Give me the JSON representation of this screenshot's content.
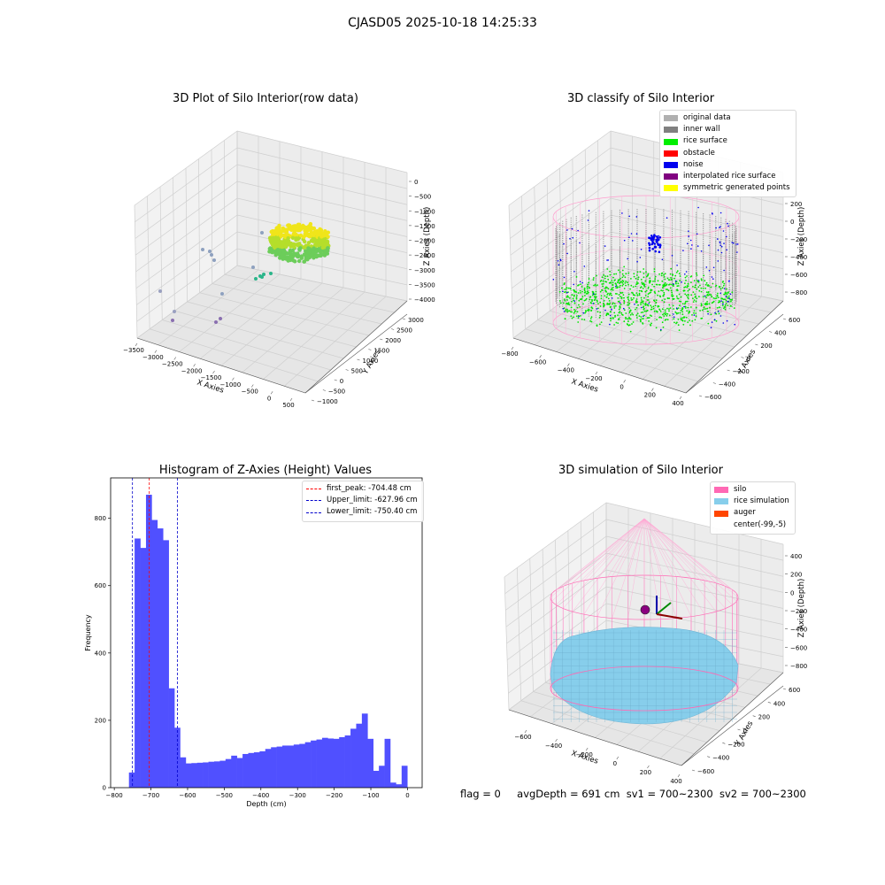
{
  "figure": {
    "suptitle": "CJASD05 2025-10-18 14:25:33",
    "footer": {
      "flag": "flag = 0",
      "avgDepth": "avgDepth = 691 cm",
      "sv1": "sv1 = 700~2300",
      "sv2": "sv2 = 700~2300"
    }
  },
  "chart_data": [
    {
      "type": "scatter",
      "title": "3D Plot of Silo Interior(row data)",
      "xlabel": "X Axies",
      "ylabel": "Y Axies",
      "zlabel": "Z Axies (Depth)",
      "x_ticks": [
        "−3500",
        "−3000",
        "−2500",
        "−2000",
        "−1500",
        "−1000",
        "−500",
        "0",
        "500"
      ],
      "y_ticks": [
        "−1000",
        "−500",
        "0",
        "500",
        "1000",
        "1500",
        "2000",
        "2500",
        "3000"
      ],
      "z_ticks": [
        "0",
        "−500",
        "−1000",
        "−1500",
        "−2000",
        "−2500",
        "−3000",
        "−3500",
        "−4000"
      ],
      "grid": true
    },
    {
      "type": "scatter",
      "title": "3D classify of Silo Interior",
      "xlabel": "X Axies",
      "ylabel": "Y Axies",
      "zlabel": "Z Axies (Depth)",
      "x_ticks": [
        "−800",
        "−600",
        "−400",
        "−200",
        "0",
        "200",
        "400"
      ],
      "y_ticks": [
        "−600",
        "−400",
        "−200",
        "0",
        "200",
        "400",
        "600"
      ],
      "z_ticks": [
        "200",
        "0",
        "−200",
        "−400",
        "−600",
        "−800"
      ],
      "legend": [
        {
          "label": "original data",
          "color": "#b0b0b0"
        },
        {
          "label": "inner wall",
          "color": "#808080"
        },
        {
          "label": "rice surface",
          "color": "#00ee00"
        },
        {
          "label": "obstacle",
          "color": "#ff0000"
        },
        {
          "label": "noise",
          "color": "#0000ee"
        },
        {
          "label": "interpolated rice surface",
          "color": "#800080"
        },
        {
          "label": "symmetric generated points",
          "color": "#ffff00"
        }
      ],
      "legend_placement": "top-right",
      "grid": true
    },
    {
      "type": "bar",
      "title": "Histogram of Z-Axies (Height) Values",
      "xlabel": "Depth (cm)",
      "ylabel": "Frequency",
      "bin_width": 15.5,
      "bins_start": -760,
      "values": [
        45,
        740,
        712,
        870,
        795,
        770,
        735,
        295,
        178,
        90,
        72,
        73,
        74,
        75,
        77,
        78,
        80,
        85,
        95,
        88,
        100,
        103,
        105,
        108,
        115,
        120,
        122,
        125,
        125,
        128,
        130,
        135,
        140,
        143,
        148,
        146,
        145,
        150,
        155,
        175,
        190,
        220,
        145,
        50,
        65,
        145,
        15,
        10,
        65
      ],
      "xlim": [
        -810,
        40
      ],
      "ylim": [
        0,
        920
      ],
      "x_ticks": [
        -800,
        -700,
        -600,
        -500,
        -400,
        -300,
        -200,
        -100,
        0
      ],
      "y_ticks": [
        0,
        200,
        400,
        600,
        800
      ],
      "vlines": [
        {
          "label": "first_peak: -704.48 cm",
          "x": -704.48,
          "color": "#ff0000"
        },
        {
          "label": "Upper_limit: -627.96 cm",
          "x": -627.96,
          "color": "#0000cc"
        },
        {
          "label": "Lower_limit: -750.40 cm",
          "x": -750.4,
          "color": "#0000cc"
        }
      ],
      "bar_color": "#5050ff",
      "legend_placement": "top-right"
    },
    {
      "type": "scatter",
      "title": "3D simulation of Silo Interior",
      "xlabel": "X Axies",
      "ylabel": "Y Axies",
      "zlabel": "Z Axies (Depth)",
      "x_ticks": [
        "−600",
        "−400",
        "−200",
        "0",
        "200",
        "400"
      ],
      "y_ticks": [
        "−600",
        "−400",
        "−200",
        "0",
        "200",
        "400",
        "600"
      ],
      "z_ticks": [
        "400",
        "200",
        "0",
        "−200",
        "−400",
        "−600",
        "−800"
      ],
      "legend": [
        {
          "label": "silo",
          "color": "#ff69b4"
        },
        {
          "label": "rice simulation",
          "color": "#87ceeb"
        },
        {
          "label": "auger",
          "color": "#ff4500"
        },
        {
          "label": "center(-99,-5)",
          "color": ""
        }
      ],
      "legend_placement": "top-right",
      "grid": true
    }
  ]
}
